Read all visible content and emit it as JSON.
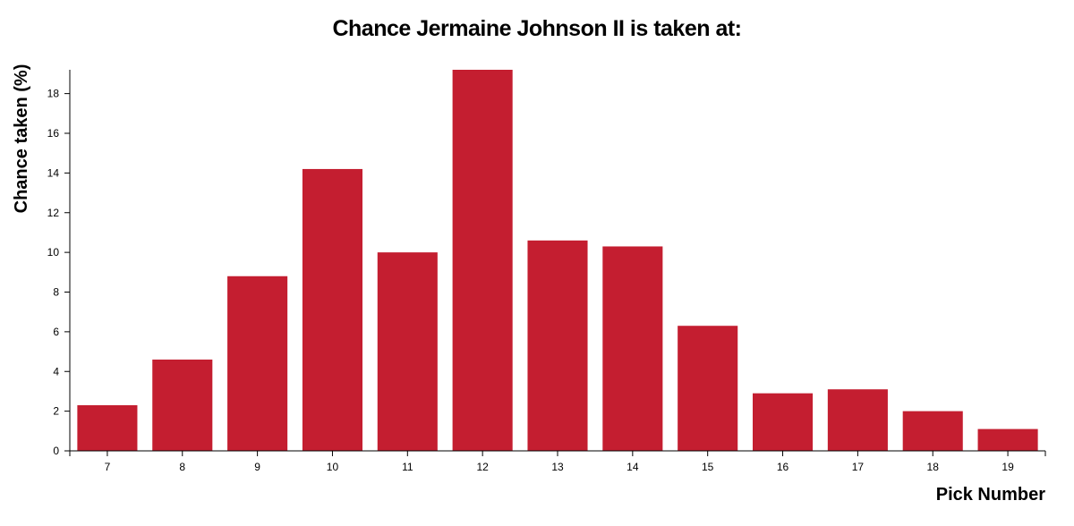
{
  "chart_data": {
    "type": "bar",
    "title": "Chance Jermaine Johnson II is taken at:",
    "xlabel": "Pick Number",
    "ylabel": "Chance taken (%)",
    "categories": [
      "7",
      "8",
      "9",
      "10",
      "11",
      "12",
      "13",
      "14",
      "15",
      "16",
      "17",
      "18",
      "19"
    ],
    "values": [
      2.3,
      4.6,
      8.8,
      14.2,
      10.0,
      19.2,
      10.6,
      10.3,
      6.3,
      2.9,
      3.1,
      2.0,
      1.1
    ],
    "ylim": [
      0,
      19.2
    ],
    "yticks": [
      0,
      2,
      4,
      6,
      8,
      10,
      12,
      14,
      16,
      18
    ],
    "bar_color": "#c41e30",
    "grid": false,
    "legend": "none"
  }
}
